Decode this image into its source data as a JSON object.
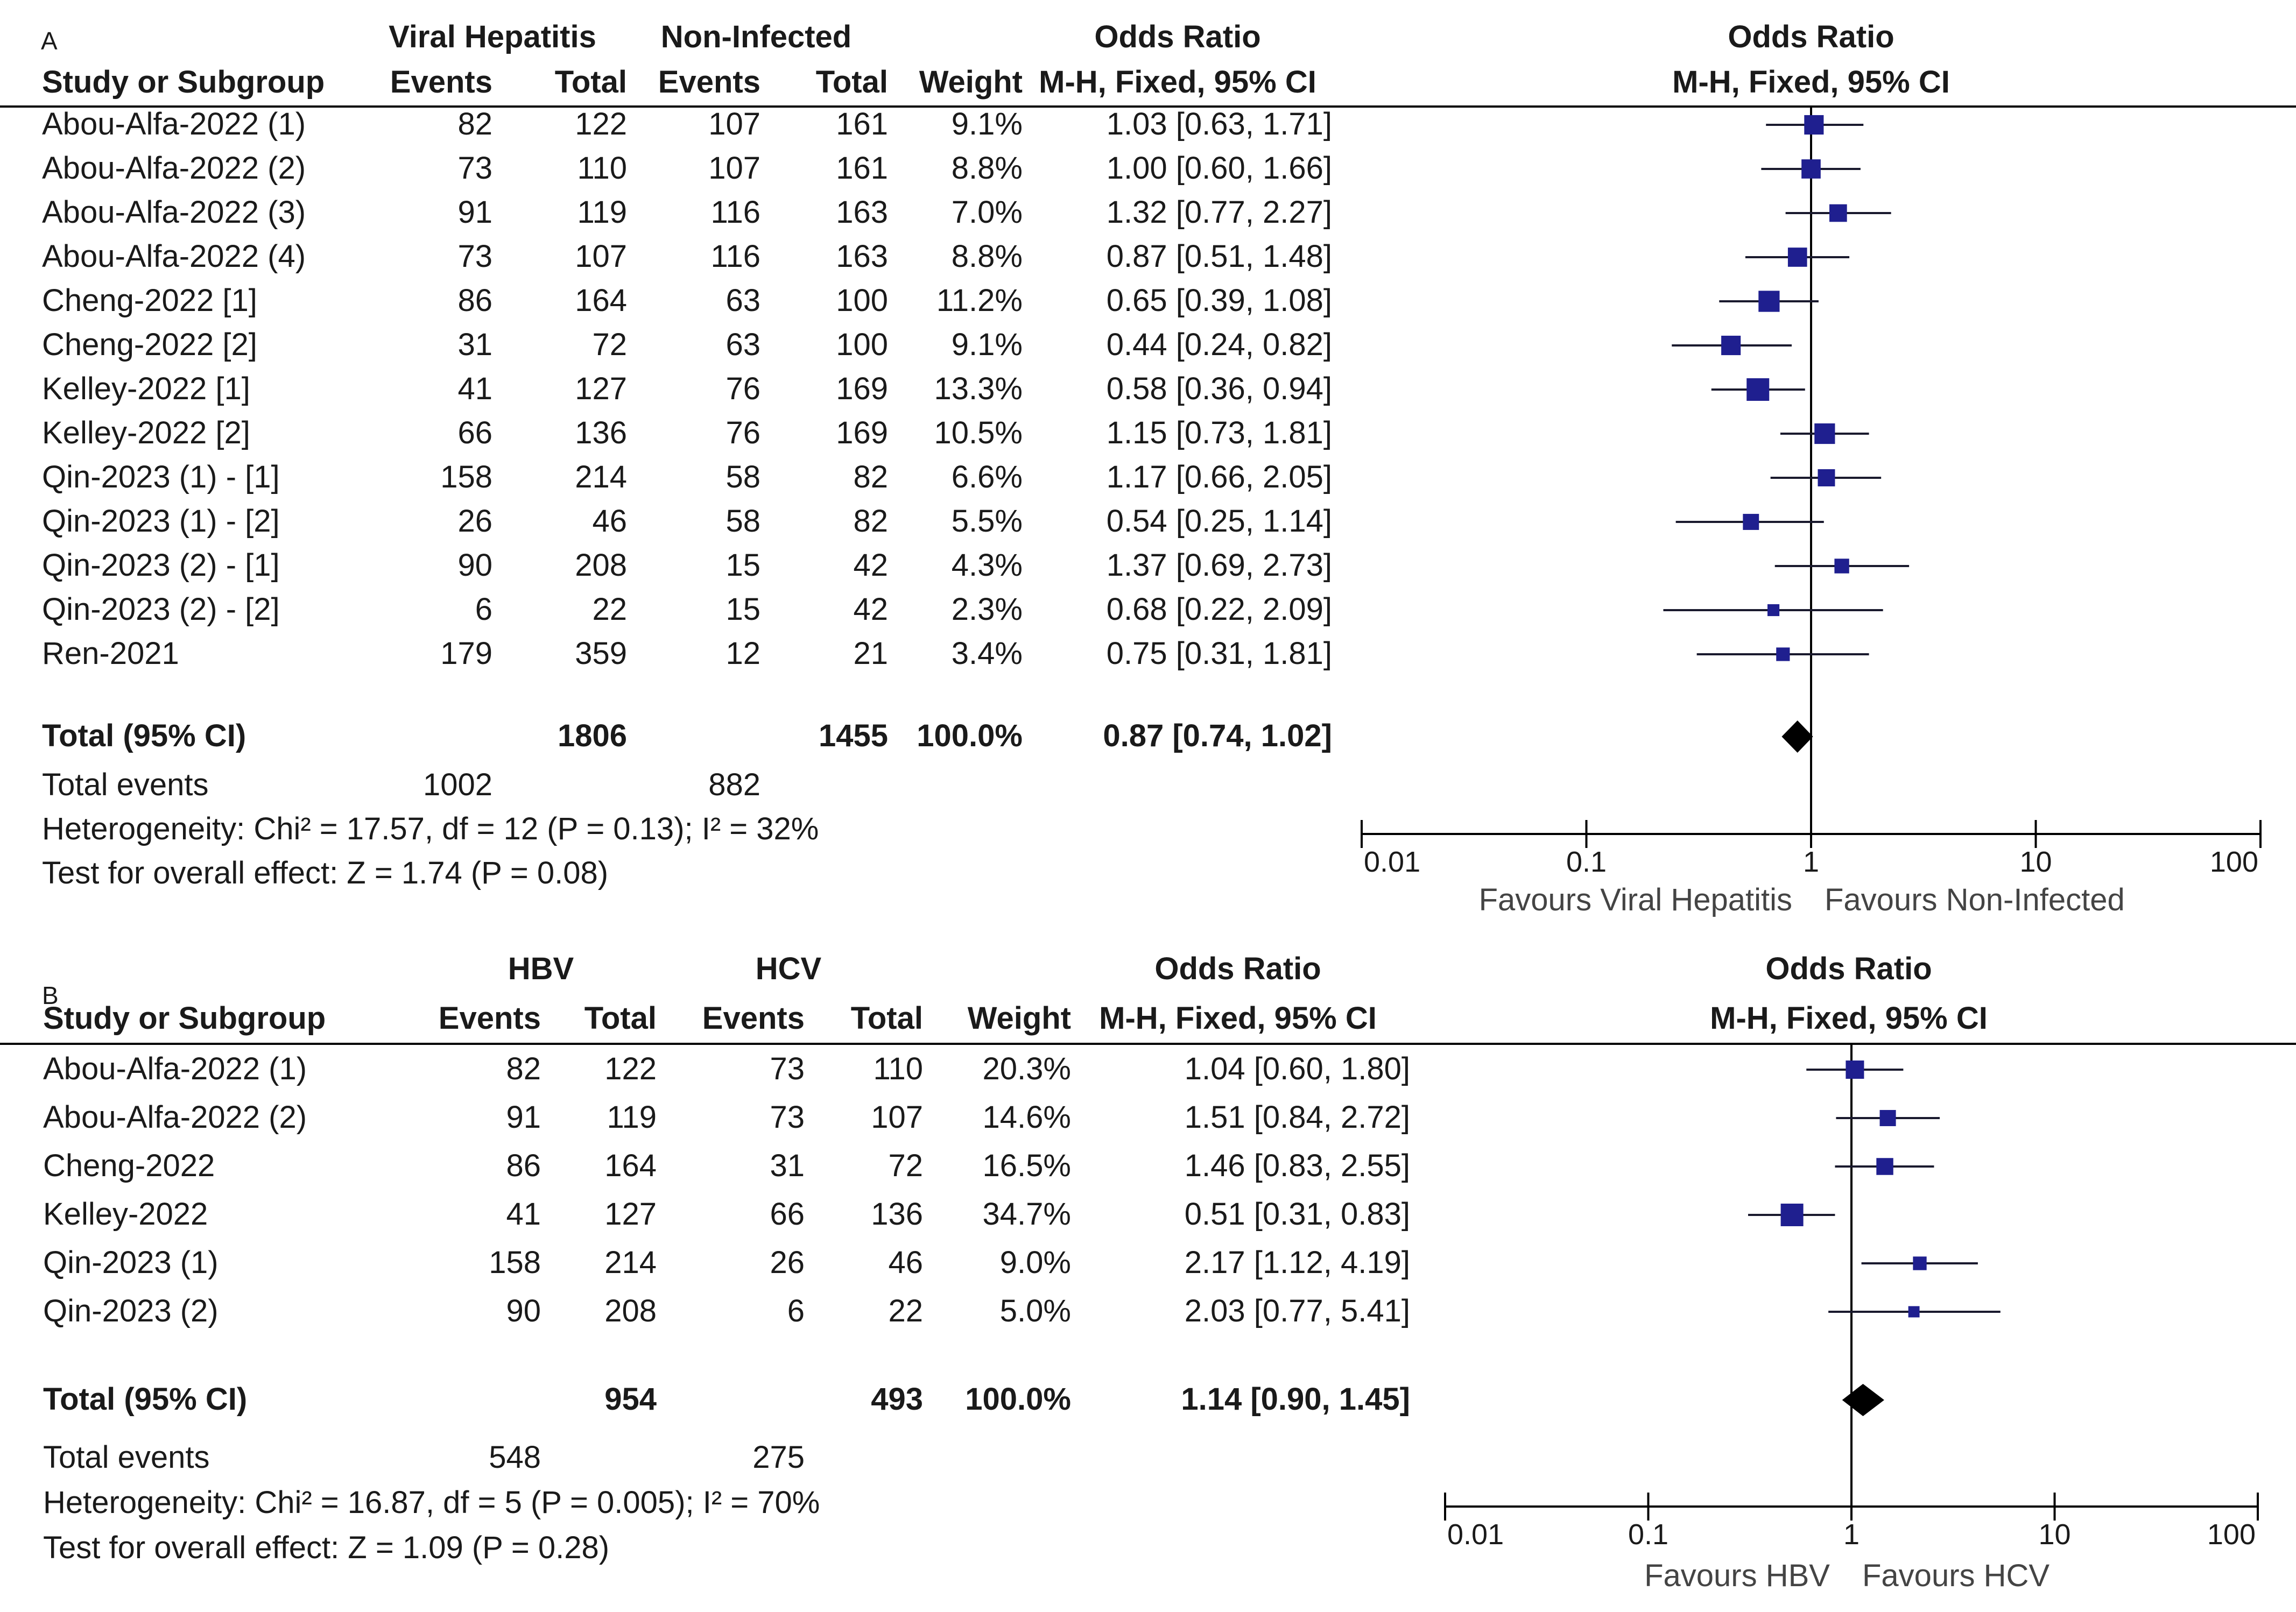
{
  "chart_data": [
    {
      "type": "forest",
      "panel": "A",
      "columns": {
        "study": "Study or Subgroup",
        "group1": "Viral Hepatitis",
        "group2": "Non-Infected",
        "events": "Events",
        "total": "Total",
        "weight": "Weight",
        "effect_title": "Odds Ratio",
        "effect_method": "M-H, Fixed, 95% CI"
      },
      "studies": [
        {
          "name": "Abou-Alfa-2022 (1)",
          "e1": "82",
          "t1": "122",
          "e2": "107",
          "t2": "161",
          "weight": "9.1%",
          "ci_text": "1.03 [0.63, 1.71]",
          "or": 1.03,
          "lo": 0.63,
          "hi": 1.71,
          "w": 9.1
        },
        {
          "name": "Abou-Alfa-2022 (2)",
          "e1": "73",
          "t1": "110",
          "e2": "107",
          "t2": "161",
          "weight": "8.8%",
          "ci_text": "1.00 [0.60, 1.66]",
          "or": 1.0,
          "lo": 0.6,
          "hi": 1.66,
          "w": 8.8
        },
        {
          "name": "Abou-Alfa-2022 (3)",
          "e1": "91",
          "t1": "119",
          "e2": "116",
          "t2": "163",
          "weight": "7.0%",
          "ci_text": "1.32 [0.77, 2.27]",
          "or": 1.32,
          "lo": 0.77,
          "hi": 2.27,
          "w": 7.0
        },
        {
          "name": "Abou-Alfa-2022 (4)",
          "e1": "73",
          "t1": "107",
          "e2": "116",
          "t2": "163",
          "weight": "8.8%",
          "ci_text": "0.87 [0.51, 1.48]",
          "or": 0.87,
          "lo": 0.51,
          "hi": 1.48,
          "w": 8.8
        },
        {
          "name": "Cheng-2022 [1]",
          "e1": "86",
          "t1": "164",
          "e2": "63",
          "t2": "100",
          "weight": "11.2%",
          "ci_text": "0.65 [0.39, 1.08]",
          "or": 0.65,
          "lo": 0.39,
          "hi": 1.08,
          "w": 11.2
        },
        {
          "name": "Cheng-2022 [2]",
          "e1": "31",
          "t1": "72",
          "e2": "63",
          "t2": "100",
          "weight": "9.1%",
          "ci_text": "0.44 [0.24, 0.82]",
          "or": 0.44,
          "lo": 0.24,
          "hi": 0.82,
          "w": 9.1
        },
        {
          "name": "Kelley-2022 [1]",
          "e1": "41",
          "t1": "127",
          "e2": "76",
          "t2": "169",
          "weight": "13.3%",
          "ci_text": "0.58 [0.36, 0.94]",
          "or": 0.58,
          "lo": 0.36,
          "hi": 0.94,
          "w": 13.3
        },
        {
          "name": "Kelley-2022 [2]",
          "e1": "66",
          "t1": "136",
          "e2": "76",
          "t2": "169",
          "weight": "10.5%",
          "ci_text": "1.15 [0.73, 1.81]",
          "or": 1.15,
          "lo": 0.73,
          "hi": 1.81,
          "w": 10.5
        },
        {
          "name": "Qin-2023 (1) - [1]",
          "e1": "158",
          "t1": "214",
          "e2": "58",
          "t2": "82",
          "weight": "6.6%",
          "ci_text": "1.17 [0.66, 2.05]",
          "or": 1.17,
          "lo": 0.66,
          "hi": 2.05,
          "w": 6.6
        },
        {
          "name": "Qin-2023 (1) - [2]",
          "e1": "26",
          "t1": "46",
          "e2": "58",
          "t2": "82",
          "weight": "5.5%",
          "ci_text": "0.54 [0.25, 1.14]",
          "or": 0.54,
          "lo": 0.25,
          "hi": 1.14,
          "w": 5.5
        },
        {
          "name": "Qin-2023 (2) - [1]",
          "e1": "90",
          "t1": "208",
          "e2": "15",
          "t2": "42",
          "weight": "4.3%",
          "ci_text": "1.37 [0.69, 2.73]",
          "or": 1.37,
          "lo": 0.69,
          "hi": 2.73,
          "w": 4.3
        },
        {
          "name": "Qin-2023 (2) - [2]",
          "e1": "6",
          "t1": "22",
          "e2": "15",
          "t2": "42",
          "weight": "2.3%",
          "ci_text": "0.68 [0.22, 2.09]",
          "or": 0.68,
          "lo": 0.22,
          "hi": 2.09,
          "w": 2.3
        },
        {
          "name": "Ren-2021",
          "e1": "179",
          "t1": "359",
          "e2": "12",
          "t2": "21",
          "weight": "3.4%",
          "ci_text": "0.75 [0.31, 1.81]",
          "or": 0.75,
          "lo": 0.31,
          "hi": 1.81,
          "w": 3.4
        }
      ],
      "total": {
        "label": "Total (95% CI)",
        "t1": "1806",
        "t2": "1455",
        "weight": "100.0%",
        "ci_text": "0.87 [0.74, 1.02]",
        "or": 0.87,
        "lo": 0.74,
        "hi": 1.02
      },
      "total_events": {
        "label": "Total events",
        "e1": "1002",
        "e2": "882"
      },
      "heterogeneity": "Heterogeneity: Chi² = 17.57, df = 12 (P = 0.13); I² = 32%",
      "overall_effect": "Test for overall effect: Z = 1.74 (P = 0.08)",
      "axis": {
        "scale": "log",
        "ticks": [
          0.01,
          0.1,
          1,
          10,
          100
        ],
        "tick_labels": [
          "0.01",
          "0.1",
          "1",
          "10",
          "100"
        ],
        "xlim": [
          0.01,
          100
        ]
      },
      "favours_left": "Favours Viral Hepatitis",
      "favours_right": "Favours Non-Infected"
    },
    {
      "type": "forest",
      "panel": "B",
      "columns": {
        "study": "Study or Subgroup",
        "group1": "HBV",
        "group2": "HCV",
        "events": "Events",
        "total": "Total",
        "weight": "Weight",
        "effect_title": "Odds Ratio",
        "effect_method": "M-H, Fixed, 95% CI"
      },
      "studies": [
        {
          "name": "Abou-Alfa-2022 (1)",
          "e1": "82",
          "t1": "122",
          "e2": "73",
          "t2": "110",
          "weight": "20.3%",
          "ci_text": "1.04 [0.60, 1.80]",
          "or": 1.04,
          "lo": 0.6,
          "hi": 1.8,
          "w": 20.3
        },
        {
          "name": "Abou-Alfa-2022 (2)",
          "e1": "91",
          "t1": "119",
          "e2": "73",
          "t2": "107",
          "weight": "14.6%",
          "ci_text": "1.51 [0.84, 2.72]",
          "or": 1.51,
          "lo": 0.84,
          "hi": 2.72,
          "w": 14.6
        },
        {
          "name": "Cheng-2022",
          "e1": "86",
          "t1": "164",
          "e2": "31",
          "t2": "72",
          "weight": "16.5%",
          "ci_text": "1.46 [0.83, 2.55]",
          "or": 1.46,
          "lo": 0.83,
          "hi": 2.55,
          "w": 16.5
        },
        {
          "name": "Kelley-2022",
          "e1": "41",
          "t1": "127",
          "e2": "66",
          "t2": "136",
          "weight": "34.7%",
          "ci_text": "0.51 [0.31, 0.83]",
          "or": 0.51,
          "lo": 0.31,
          "hi": 0.83,
          "w": 34.7
        },
        {
          "name": "Qin-2023 (1)",
          "e1": "158",
          "t1": "214",
          "e2": "26",
          "t2": "46",
          "weight": "9.0%",
          "ci_text": "2.17 [1.12, 4.19]",
          "or": 2.17,
          "lo": 1.12,
          "hi": 4.19,
          "w": 9.0
        },
        {
          "name": "Qin-2023 (2)",
          "e1": "90",
          "t1": "208",
          "e2": "6",
          "t2": "22",
          "weight": "5.0%",
          "ci_text": "2.03 [0.77, 5.41]",
          "or": 2.03,
          "lo": 0.77,
          "hi": 5.41,
          "w": 5.0
        }
      ],
      "total": {
        "label": "Total (95% CI)",
        "t1": "954",
        "t2": "493",
        "weight": "100.0%",
        "ci_text": "1.14 [0.90, 1.45]",
        "or": 1.14,
        "lo": 0.9,
        "hi": 1.45
      },
      "total_events": {
        "label": "Total events",
        "e1": "548",
        "e2": "275"
      },
      "heterogeneity": "Heterogeneity: Chi² = 16.87, df = 5 (P = 0.005); I² = 70%",
      "overall_effect": "Test for overall effect: Z = 1.09 (P = 0.28)",
      "axis": {
        "scale": "log",
        "ticks": [
          0.01,
          0.1,
          1,
          10,
          100
        ],
        "tick_labels": [
          "0.01",
          "0.1",
          "1",
          "10",
          "100"
        ],
        "xlim": [
          0.01,
          100
        ]
      },
      "favours_left": "Favours HBV",
      "favours_right": "Favours HCV"
    }
  ],
  "colors": {
    "marker": "#1f1f8f",
    "diamond": "#000000",
    "line": "#000000",
    "text": "#1a1a1a"
  }
}
